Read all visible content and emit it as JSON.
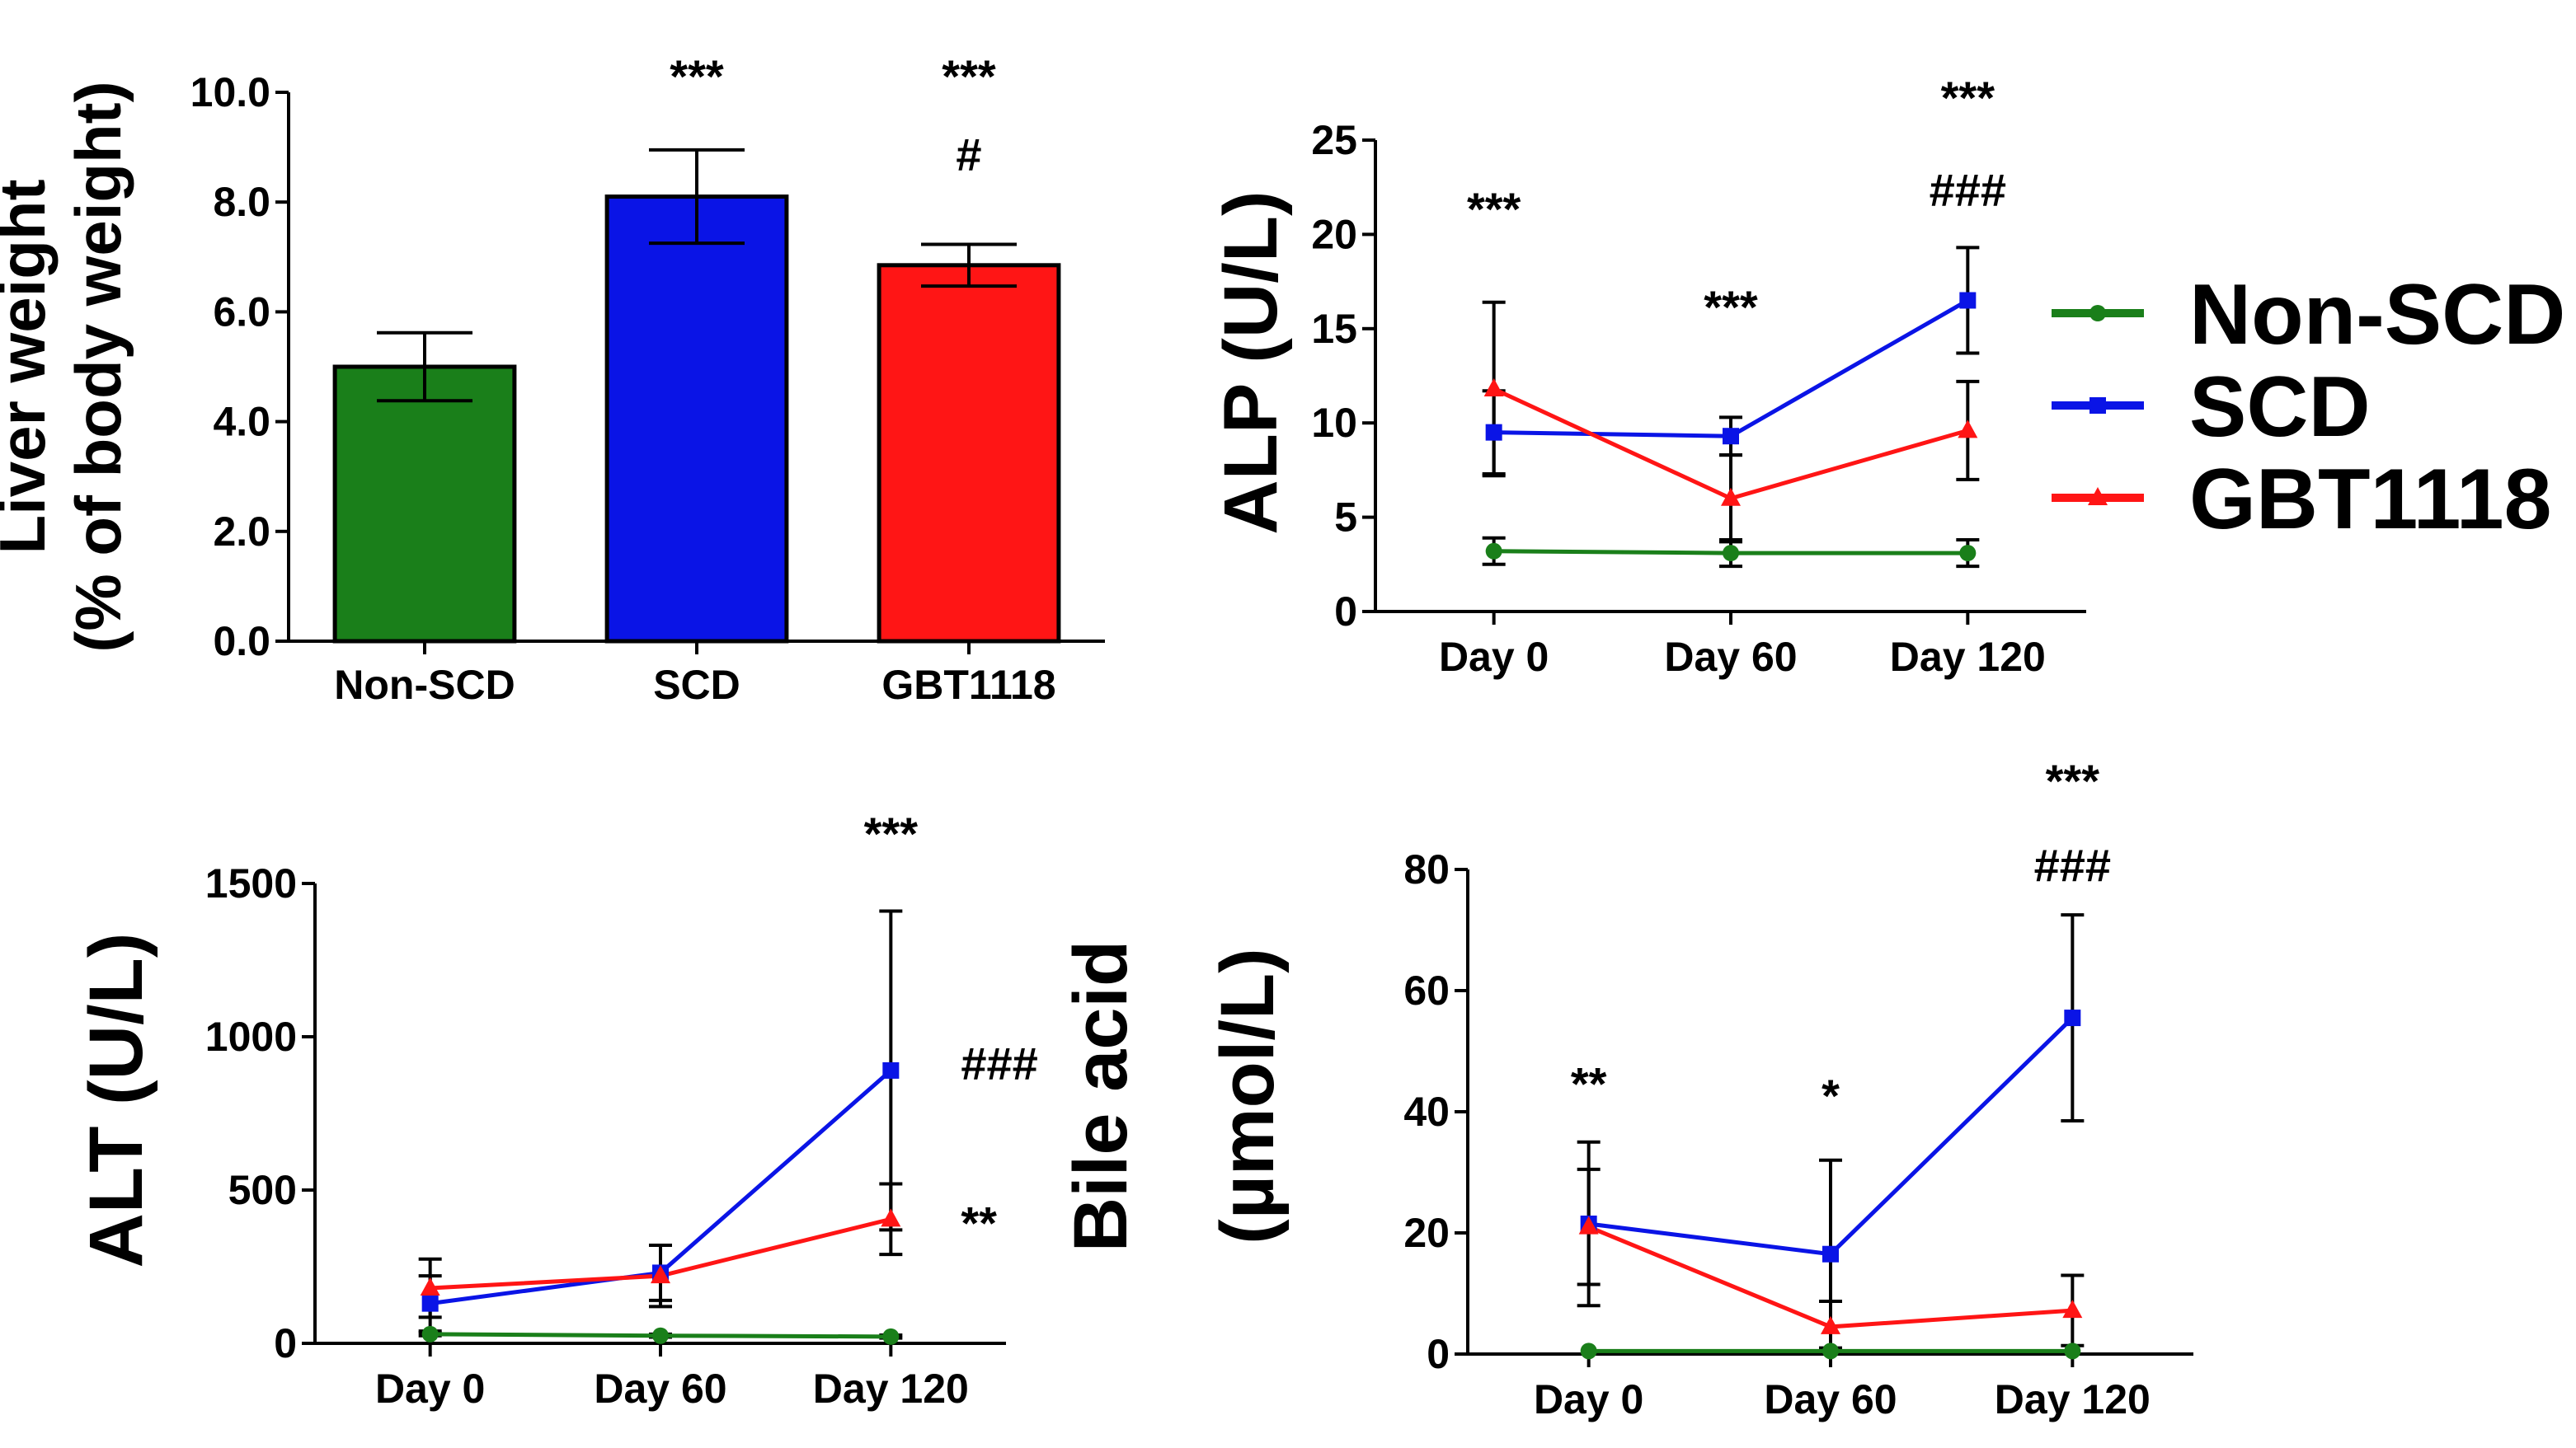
{
  "colors": {
    "non_scd": "#1a7f1a",
    "scd": "#0a14e6",
    "gbt1118": "#ff1515",
    "axis": "#000000"
  },
  "legend": {
    "items": [
      {
        "label": "Non-SCD",
        "color": "#1a7f1a",
        "marker": "circle"
      },
      {
        "label": "SCD",
        "color": "#0a14e6",
        "marker": "square"
      },
      {
        "label": "GBT1118",
        "color": "#ff1515",
        "marker": "triangle"
      }
    ]
  },
  "chart_data": [
    {
      "id": "liver",
      "type": "bar",
      "ylabel": [
        "Liver weight",
        "(% of body weight)"
      ],
      "ylim": [
        0,
        10
      ],
      "yticks": [
        0,
        2,
        4,
        6,
        8,
        10
      ],
      "ytick_labels": [
        "0.0",
        "2.0",
        "4.0",
        "6.0",
        "8.0",
        "10.0"
      ],
      "categories": [
        "Non-SCD",
        "SCD",
        "GBT1118"
      ],
      "values": [
        5.0,
        8.1,
        6.85
      ],
      "errors": [
        0.62,
        0.85,
        0.38
      ],
      "annotations": [
        {
          "category": "SCD",
          "lines": [
            "***"
          ]
        },
        {
          "category": "GBT1118",
          "lines": [
            "***",
            "#"
          ]
        }
      ]
    },
    {
      "id": "alp",
      "type": "line",
      "ylabel": [
        "ALP (U/L)"
      ],
      "ylim": [
        0,
        25
      ],
      "yticks": [
        0,
        5,
        10,
        15,
        20,
        25
      ],
      "ytick_labels": [
        "0",
        "5",
        "10",
        "15",
        "20",
        "25"
      ],
      "categories": [
        "Day 0",
        "Day 60",
        "Day 120"
      ],
      "series": [
        {
          "name": "Non-SCD",
          "values": [
            3.2,
            3.1,
            3.1
          ],
          "errors": [
            0.7,
            0.7,
            0.7
          ]
        },
        {
          "name": "SCD",
          "values": [
            9.5,
            9.3,
            16.5
          ],
          "errors": [
            2.2,
            1.0,
            2.8
          ]
        },
        {
          "name": "GBT1118",
          "values": [
            11.8,
            6.0,
            9.6
          ],
          "errors": [
            4.6,
            2.3,
            2.6
          ]
        }
      ],
      "annotations": [
        {
          "category": "Day 0",
          "text": "***",
          "y": 20.5
        },
        {
          "category": "Day 60",
          "text": "***",
          "y": 15.3
        },
        {
          "category": "Day 120",
          "text": "***",
          "y": 26.4
        },
        {
          "category": "Day 120",
          "text": "###",
          "y": 21.5
        }
      ]
    },
    {
      "id": "alt",
      "type": "line",
      "ylabel": [
        "ALT (U/L)"
      ],
      "ylim": [
        0,
        1500
      ],
      "yticks": [
        0,
        500,
        1000,
        1500
      ],
      "ytick_labels": [
        "0",
        "500",
        "1000",
        "1500"
      ],
      "categories": [
        "Day 0",
        "Day 60",
        "Day 120"
      ],
      "series": [
        {
          "name": "Non-SCD",
          "values": [
            30,
            25,
            22
          ],
          "errors": [
            5,
            5,
            5
          ]
        },
        {
          "name": "SCD",
          "values": [
            130,
            230,
            890
          ],
          "errors": [
            90,
            90,
            520
          ]
        },
        {
          "name": "GBT1118",
          "values": [
            180,
            220,
            405
          ],
          "errors": [
            95,
            100,
            115
          ]
        }
      ],
      "annotations": [
        {
          "category": "Day 120",
          "text": "***",
          "y": 1610,
          "dx": 0
        },
        {
          "category": "Day 120",
          "text": "###",
          "y": 860,
          "dx": 85
        },
        {
          "category": "Day 120",
          "text": "**",
          "y": 340,
          "dx": 85
        }
      ]
    },
    {
      "id": "bile",
      "type": "line",
      "ylabel": [
        "Bile acid",
        "(µmol/L)"
      ],
      "ylim": [
        0,
        80
      ],
      "yticks": [
        0,
        20,
        40,
        60,
        80
      ],
      "ytick_labels": [
        "0",
        "20",
        "40",
        "60",
        "80"
      ],
      "categories": [
        "Day 0",
        "Day 60",
        "Day 120"
      ],
      "series": [
        {
          "name": "Non-SCD",
          "values": [
            0.5,
            0.5,
            0.5
          ],
          "errors": [
            0,
            0,
            0
          ]
        },
        {
          "name": "SCD",
          "values": [
            21.5,
            16.5,
            55.5
          ],
          "errors": [
            13.5,
            15.5,
            17
          ]
        },
        {
          "name": "GBT1118",
          "values": [
            21,
            4.5,
            7.2
          ],
          "errors": [
            9.5,
            4.2,
            5.8
          ]
        }
      ],
      "annotations": [
        {
          "category": "Day 0",
          "text": "**",
          "y": 42
        },
        {
          "category": "Day 60",
          "text": "*",
          "y": 40
        },
        {
          "category": "Day 120",
          "text": "***",
          "y": 92
        },
        {
          "category": "Day 120",
          "text": "###",
          "y": 78
        }
      ]
    }
  ]
}
